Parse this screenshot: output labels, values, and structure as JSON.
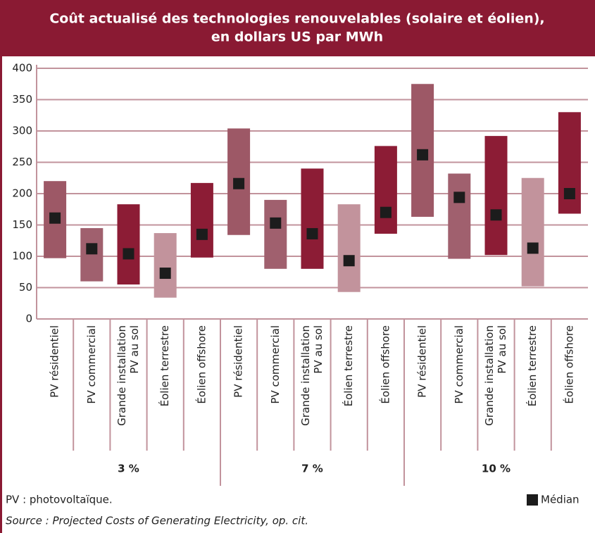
{
  "chart_data": {
    "type": "range-bar",
    "title": [
      "Coût actualisé des technologies renouvelables (solaire et éolien),",
      "en dollars US par MWh"
    ],
    "categories": [
      "PV résidentiel",
      "PV commercial",
      [
        "Grande installation",
        "PV au sol"
      ],
      "Éolien terrestre",
      "Éolien offshore",
      "PV résidentiel",
      "PV commercial",
      [
        "Grande installation",
        "PV au sol"
      ],
      "Éolien terrestre",
      "Éolien offshore",
      "PV résidentiel",
      "PV commercial",
      [
        "Grande installation",
        "PV au sol"
      ],
      "Éolien terrestre",
      "Éolien offshore"
    ],
    "groups": [
      "3 %",
      "7 %",
      "10 %"
    ],
    "low": [
      97,
      60,
      55,
      34,
      98,
      134,
      80,
      80,
      43,
      136,
      163,
      96,
      102,
      52,
      168
    ],
    "high": [
      220,
      145,
      183,
      137,
      217,
      304,
      190,
      240,
      183,
      276,
      375,
      232,
      292,
      225,
      330
    ],
    "bar_colors": [
      "#9d5866",
      "#a0606e",
      "#8c1c35",
      "#c2939c",
      "#8c1c35",
      "#9d5866",
      "#a0606e",
      "#8c1c35",
      "#c2939c",
      "#8c1c35",
      "#9d5866",
      "#a0606e",
      "#8c1c35",
      "#c2939c",
      "#8c1c35"
    ],
    "series": [
      {
        "name": "Médian",
        "color": "#1c1c1c",
        "values": [
          161,
          112,
          104,
          73,
          135,
          216,
          153,
          136,
          93,
          170,
          262,
          194,
          166,
          113,
          200
        ]
      }
    ],
    "ylim": [
      0,
      400
    ],
    "yticks": [
      0,
      50,
      100,
      150,
      200,
      250,
      300,
      350,
      400
    ],
    "grid": true,
    "footnote": "PV : photovoltaïque.",
    "source": "Source : Projected Costs of Generating Electricity, op. cit."
  }
}
